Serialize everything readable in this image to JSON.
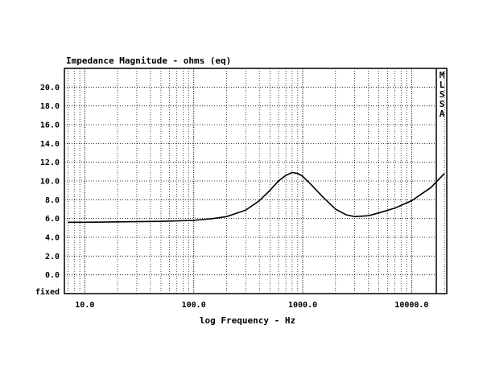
{
  "chart_data": {
    "type": "line",
    "title": "Impedance Magnitude - ohms (eq)",
    "xlabel": "log Frequency - Hz",
    "ylabel": "",
    "x_scale": "log",
    "xlim": [
      6.5,
      21000
    ],
    "ylim": [
      -2,
      22
    ],
    "x_ticks": [
      10,
      100,
      1000,
      10000
    ],
    "x_tick_labels": [
      "10.0",
      "100.0",
      "1000.0",
      "10000.0"
    ],
    "y_ticks": [
      0,
      2,
      4,
      6,
      8,
      10,
      12,
      14,
      16,
      18,
      20
    ],
    "y_tick_labels": [
      "0.0",
      "2.0",
      "4.0",
      "6.0",
      "8.0",
      "10.0",
      "12.0",
      "14.0",
      "16.0",
      "18.0",
      "20.0"
    ],
    "bottom_label": "fixed",
    "side_label": [
      "M",
      "L",
      "S",
      "S",
      "A"
    ],
    "grid": true,
    "series": [
      {
        "x": [
          7,
          10,
          20,
          50,
          100,
          150,
          200,
          300,
          400,
          500,
          600,
          700,
          800,
          900,
          1000,
          1200,
          1500,
          2000,
          2500,
          3000,
          4000,
          5000,
          7000,
          10000,
          15000,
          20000
        ],
        "y": [
          5.6,
          5.6,
          5.65,
          5.7,
          5.8,
          6.0,
          6.2,
          6.9,
          7.9,
          9.0,
          10.0,
          10.6,
          10.9,
          10.8,
          10.5,
          9.6,
          8.4,
          7.0,
          6.4,
          6.2,
          6.3,
          6.6,
          7.1,
          7.9,
          9.3,
          10.8
        ]
      }
    ]
  }
}
